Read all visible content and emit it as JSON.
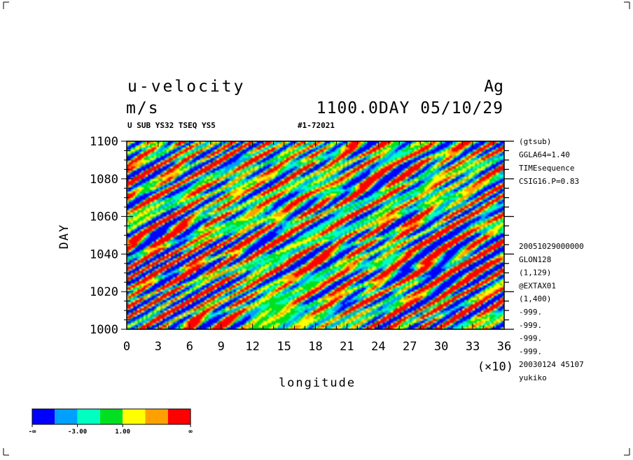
{
  "header": {
    "title": "u-velocity",
    "units": "m/s",
    "right_tag": "Ag",
    "time_stamp": "1100.0DAY 05/10/29",
    "subtitle": "U SUB YS32 TSEQ YS5",
    "run_id": "#1-72021"
  },
  "side_info": {
    "top": [
      "(gtsub)",
      "GGLA64=1.40",
      "TIMEsequence",
      "CSIG16.P=0.83"
    ],
    "bottom": [
      "20051029000000",
      "GLON128",
      "(1,129)",
      "@EXTAX01",
      "(1,400)",
      "-999.",
      "-999.",
      "-999.",
      "-999.",
      "20030124  45107",
      "yukiko"
    ]
  },
  "colorbar": {
    "colors": [
      "#0000ff",
      "#00a0ff",
      "#00ffc0",
      "#00e020",
      "#ffff00",
      "#ffa000",
      "#ff0000"
    ],
    "labels": [
      "-∞",
      "-3.00",
      "1.00",
      "∞"
    ]
  },
  "chart_data": {
    "type": "heatmap",
    "title": "u-velocity",
    "xlabel": "longitude",
    "ylabel": "DAY",
    "x_scale_note": "(×10)",
    "xlim": [
      0,
      36
    ],
    "ylim": [
      1000,
      1100
    ],
    "x_ticks": [
      "0",
      "3",
      "6",
      "9",
      "12",
      "15",
      "18",
      "21",
      "24",
      "27",
      "30",
      "33",
      "36"
    ],
    "y_ticks": [
      "1000",
      "1020",
      "1040",
      "1060",
      "1080",
      "1100"
    ],
    "color_levels": [
      -3.0,
      1.0
    ]
  }
}
